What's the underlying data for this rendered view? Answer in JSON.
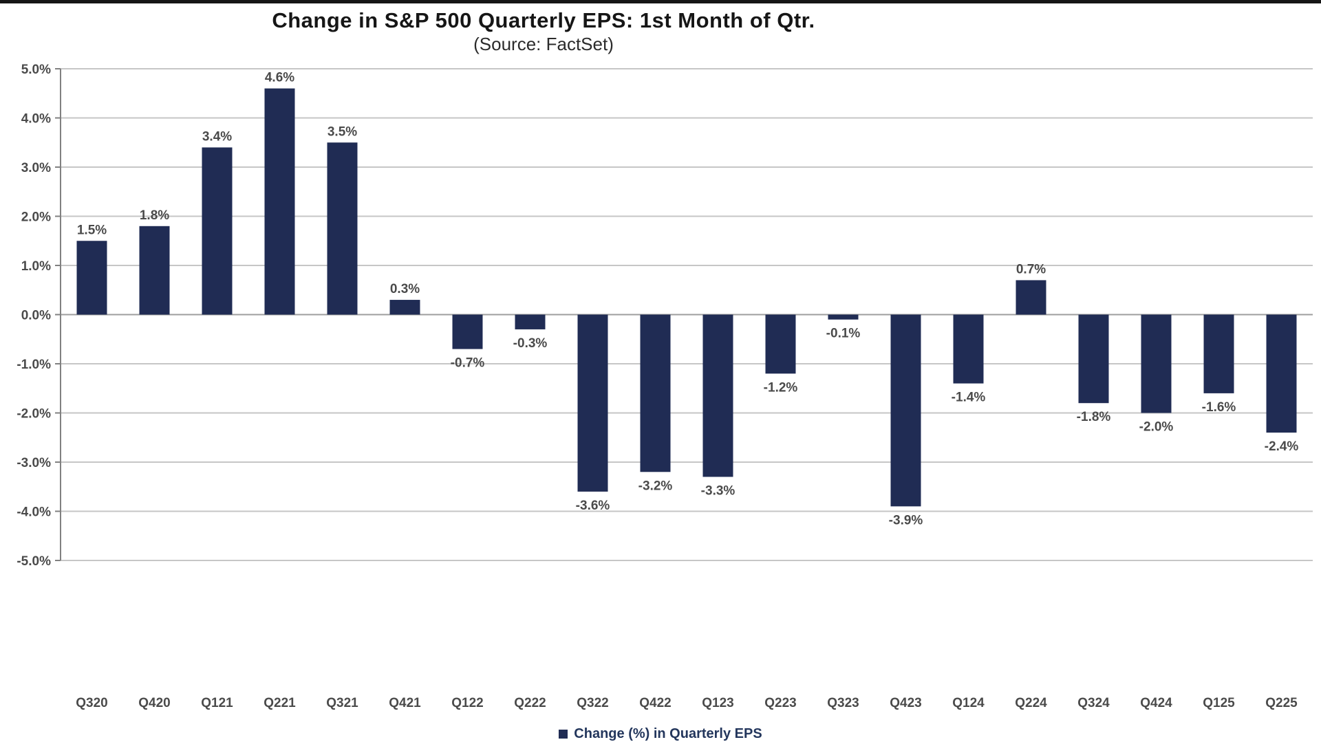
{
  "page": {
    "top_border_present": true
  },
  "chart_data": {
    "type": "bar",
    "title": "Change in S&P 500 Quarterly EPS: 1st Month of Qtr.",
    "subtitle": "(Source: FactSet)",
    "categories": [
      "Q320",
      "Q420",
      "Q121",
      "Q221",
      "Q321",
      "Q421",
      "Q122",
      "Q222",
      "Q322",
      "Q422",
      "Q123",
      "Q223",
      "Q323",
      "Q423",
      "Q124",
      "Q224",
      "Q324",
      "Q424",
      "Q125",
      "Q225"
    ],
    "series": [
      {
        "name": "Change (%) in Quarterly EPS",
        "values": [
          1.5,
          1.8,
          3.4,
          4.6,
          3.5,
          0.3,
          -0.7,
          -0.3,
          -3.6,
          -3.2,
          -3.3,
          -1.2,
          -0.1,
          -3.9,
          -1.4,
          0.7,
          -1.8,
          -2.0,
          -1.6,
          -2.4
        ],
        "data_labels": [
          "1.5%",
          "1.8%",
          "3.4%",
          "4.6%",
          "3.5%",
          "0.3%",
          "-0.7%",
          "-0.3%",
          "-3.6%",
          "-3.2%",
          "-3.3%",
          "-1.2%",
          "-0.1%",
          "-3.9%",
          "-1.4%",
          "0.7%",
          "-1.8%",
          "-2.0%",
          "-1.6%",
          "-2.4%"
        ]
      }
    ],
    "xlabel": "",
    "ylabel": "",
    "ylim": [
      -5,
      5
    ],
    "ytick_step": 1,
    "ytick_labels": [
      "5.0%",
      "4.0%",
      "3.0%",
      "2.0%",
      "1.0%",
      "0.0%",
      "-1.0%",
      "-2.0%",
      "-3.0%",
      "-4.0%",
      "-5.0%"
    ],
    "grid": true,
    "data_labels_visible": true,
    "legend": {
      "position": "bottom",
      "label": "Change (%) in Quarterly EPS"
    },
    "colors": {
      "bar": "#202c54",
      "gridline": "#c6c6c6",
      "zero_line": "#9e9e9e",
      "axis_line": "#808080",
      "tick_text": "#4a4a4a",
      "data_label_text": "#4a4a4a",
      "legend_text": "#23365c",
      "title_text": "#161616"
    }
  }
}
